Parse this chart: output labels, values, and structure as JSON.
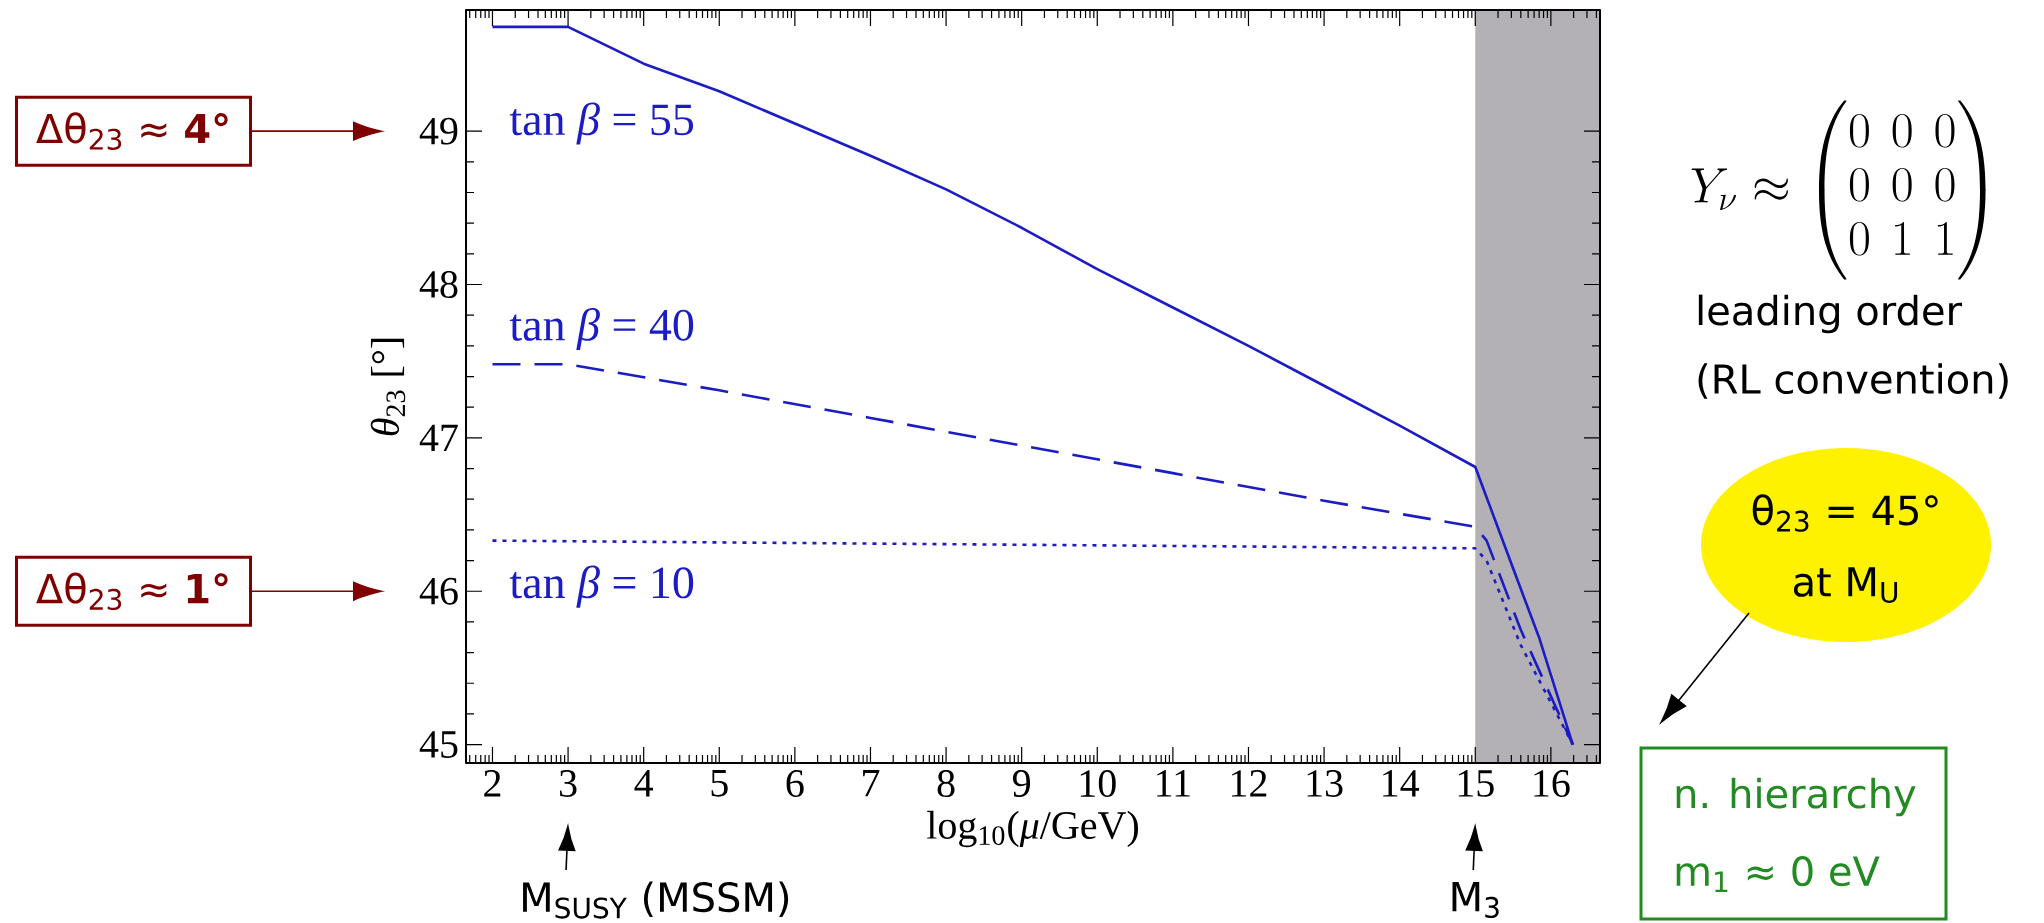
{
  "chart_data": {
    "type": "line",
    "xlabel": "log$_{10}$(*μ*/GeV)",
    "ylabel": "*θ*$_{23}$ [°]",
    "xlim": [
      1.65,
      16.65
    ],
    "ylim": [
      44.88,
      49.79
    ],
    "xticks": [
      2,
      3,
      4,
      5,
      6,
      7,
      8,
      9,
      10,
      11,
      12,
      13,
      14,
      15,
      16
    ],
    "yticks": [
      45,
      46,
      47,
      48,
      49
    ],
    "grid": false,
    "series": [
      {
        "name": "tan *β* = 55",
        "color": "#1c1cc4",
        "line_style": "solid",
        "x": [
          2,
          3,
          4,
          5,
          6,
          7,
          8,
          9,
          10,
          11,
          12,
          13,
          14,
          15,
          15.5,
          15.85,
          16.29
        ],
        "values": [
          49.68,
          49.68,
          49.44,
          49.26,
          49.05,
          48.84,
          48.62,
          48.37,
          48.1,
          47.85,
          47.6,
          47.34,
          47.08,
          46.81,
          46.15,
          45.69,
          45.0
        ]
      },
      {
        "name": "tan *β* = 40",
        "color": "#1c1cc4",
        "line_style": "dashed",
        "x": [
          2,
          3,
          5,
          7,
          9,
          11,
          13,
          15,
          15.15,
          15.6,
          16.29
        ],
        "values": [
          47.48,
          47.48,
          47.31,
          47.13,
          46.95,
          46.77,
          46.59,
          46.42,
          46.33,
          45.75,
          45.0
        ]
      },
      {
        "name": "tan *β* = 10",
        "color": "#1c1cc4",
        "line_style": "dotted",
        "x": [
          2,
          15,
          15.15,
          15.6,
          16.29
        ],
        "values": [
          46.33,
          46.28,
          46.2,
          45.65,
          45.0
        ]
      }
    ],
    "bands": [
      {
        "axis": "x",
        "from": 15,
        "to": 16.65,
        "color": "#b3b1b5"
      }
    ],
    "annotations": [
      "Δθ$_{23}$ ≈ **4°**",
      "Δθ$_{23}$ ≈ **1°**",
      "M$_{SUSY}$ (MSSM)",
      "M$_{3}$",
      "Y_\\nu \\approx \\begin{pmatrix}0&0&0\\\\0&0&0\\\\0&1&1\\end{pmatrix}",
      "leading order",
      "(RL convention)",
      "θ$_{23}$ = 45°",
      "at M$_{U}$",
      "n. hierarchy",
      "m$_{1}$ ≈ 0 eV"
    ]
  }
}
